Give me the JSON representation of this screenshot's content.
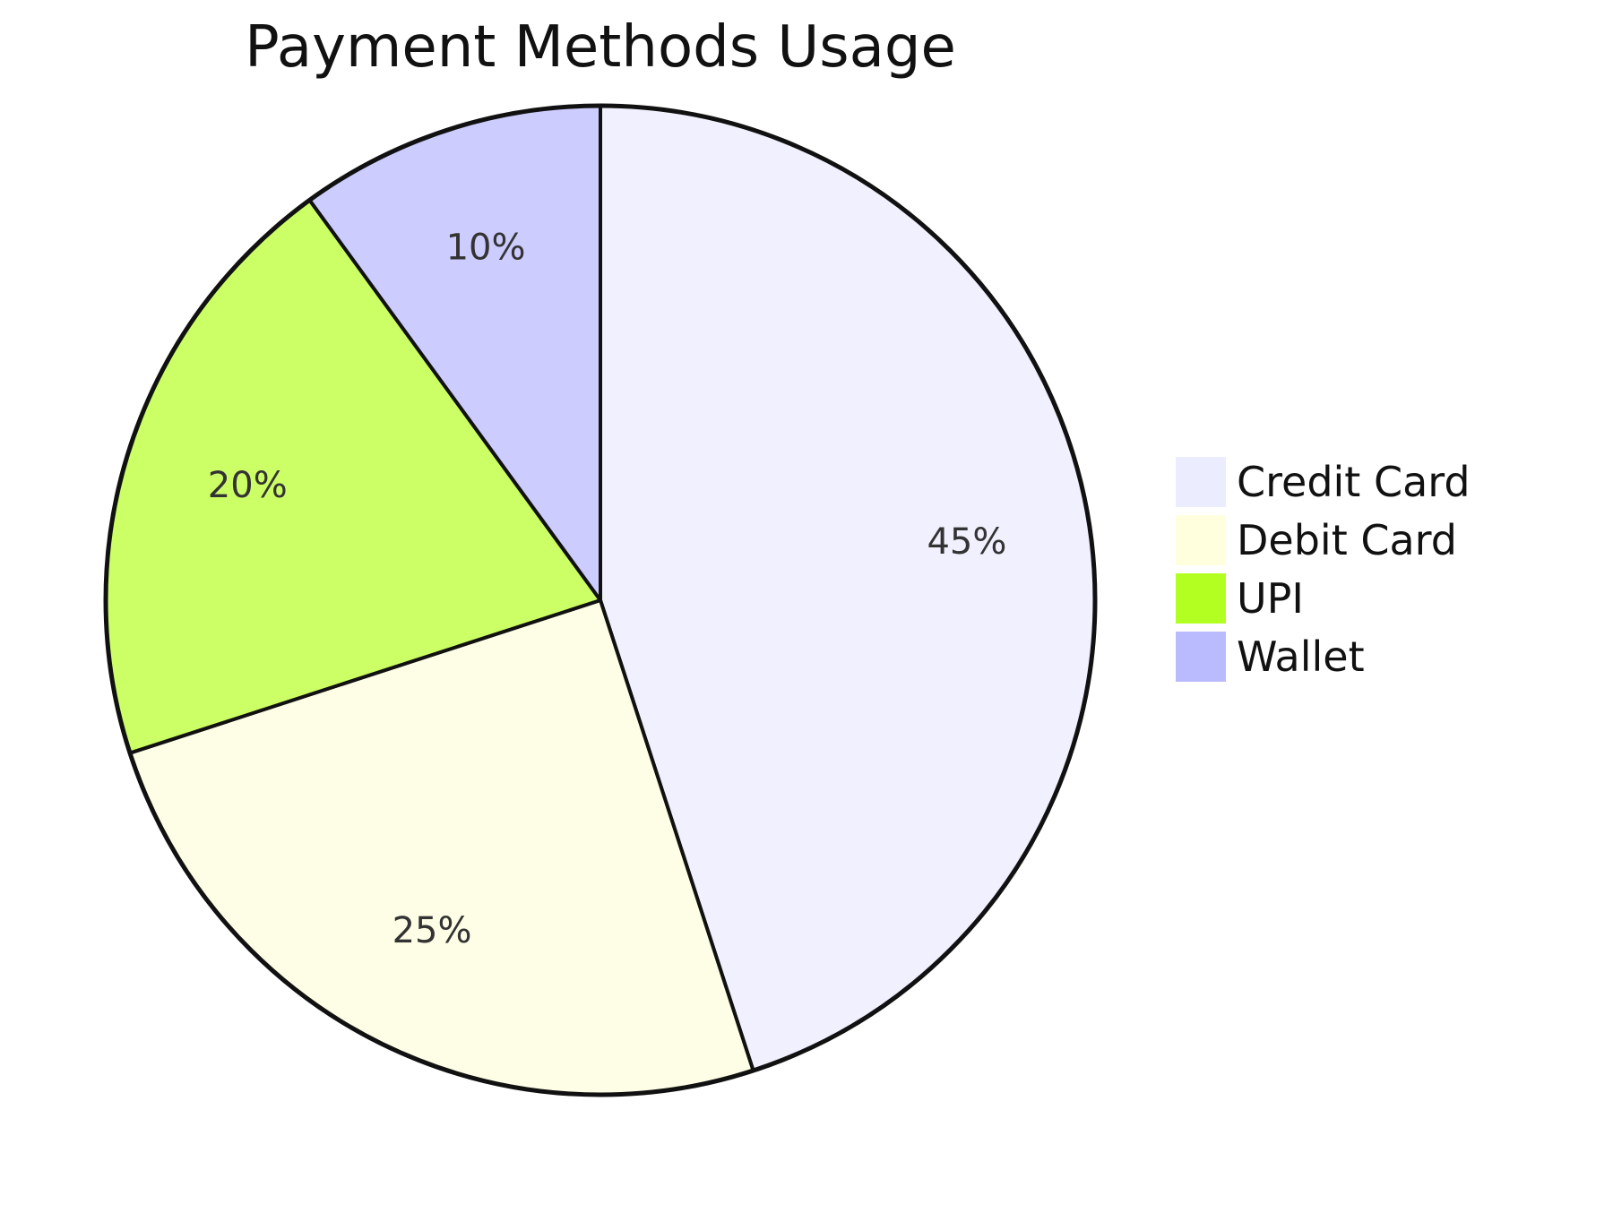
{
  "chart_data": {
    "type": "pie",
    "title": "Payment Methods Usage",
    "categories": [
      "Credit Card",
      "Debit Card",
      "UPI",
      "Wallet"
    ],
    "values": [
      45,
      25,
      20,
      10
    ],
    "labels": [
      "45%",
      "25%",
      "20%",
      "10%"
    ],
    "colors": [
      "#f0f0fe",
      "#fefee6",
      "#ccff66",
      "#ccccff"
    ],
    "legend_colors": [
      "#ececff",
      "#ffffde",
      "#b2ff22",
      "#babaff"
    ],
    "start_angle": "12 o'clock",
    "direction": "clockwise",
    "legend": "right"
  }
}
